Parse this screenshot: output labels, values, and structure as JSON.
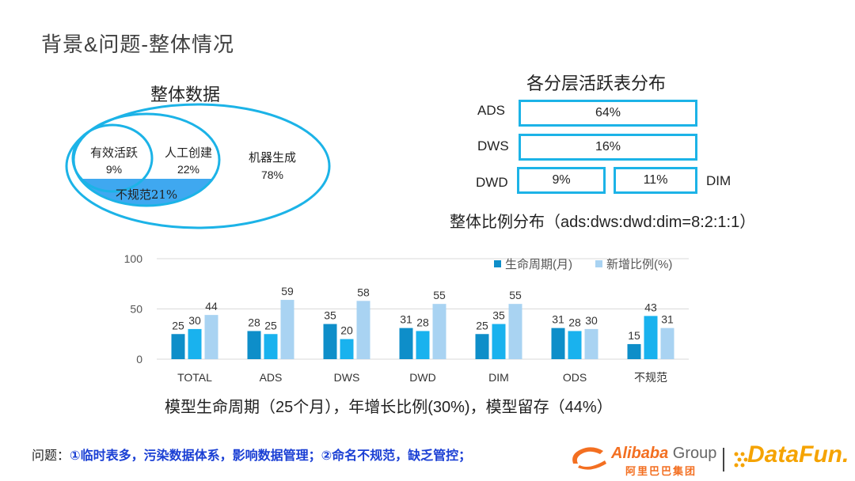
{
  "page": {
    "title": "背景&问题-整体情况"
  },
  "venn": {
    "title": "整体数据",
    "temp_label": "有效活跃",
    "temp_value": "9%",
    "manual_label": "人工创建",
    "manual_value": "22%",
    "machine_label": "机器生成",
    "machine_value": "78%",
    "irregular_label": "不规范21%"
  },
  "layers": {
    "title": "各分层活跃表分布",
    "ads_label": "ADS",
    "ads_value": "64%",
    "dws_label": "DWS",
    "dws_value": "16%",
    "dwd_label": "DWD",
    "dwd_value": "9%",
    "dim_label": "DIM",
    "dim_value": "11%",
    "ratio_text": "整体比例分布（ads:dws:dwd:dim=8:2:1:1）"
  },
  "chart_data": {
    "type": "bar",
    "categories": [
      "TOTAL",
      "ADS",
      "DWS",
      "DWD",
      "DIM",
      "ODS",
      "不规范"
    ],
    "series": [
      {
        "name": "生命周期(月)",
        "values": [
          25,
          28,
          35,
          31,
          25,
          31,
          15
        ]
      },
      {
        "name": "",
        "values": [
          30,
          25,
          20,
          28,
          35,
          28,
          43
        ]
      },
      {
        "name": "新增比例(%)",
        "values": [
          44,
          59,
          58,
          55,
          55,
          30,
          31
        ]
      }
    ],
    "yticks": [
      "0",
      "50",
      "100"
    ],
    "ylim": [
      0,
      100
    ],
    "grid": true,
    "legend": "top-right",
    "colors": [
      "#0e8ec9",
      "#19b2ee",
      "#a9d3f2"
    ]
  },
  "summary": {
    "text": "模型生命周期（25个月），年增长比例(30%)，模型留存（44%）"
  },
  "issue": {
    "prefix": "问题：",
    "text": "①临时表多，污染数据体系，影响数据管理；②命名不规范，缺乏管控；"
  },
  "logos": {
    "alibaba": "Alibaba",
    "alibaba_group": " Group",
    "alibaba_cn": "阿里巴巴集团",
    "datafun": "DataFun."
  },
  "colors": {
    "accent": "#1cb3e7",
    "irregular_fill": "#3fa8f0",
    "issue_text": "#1a3fd4"
  }
}
